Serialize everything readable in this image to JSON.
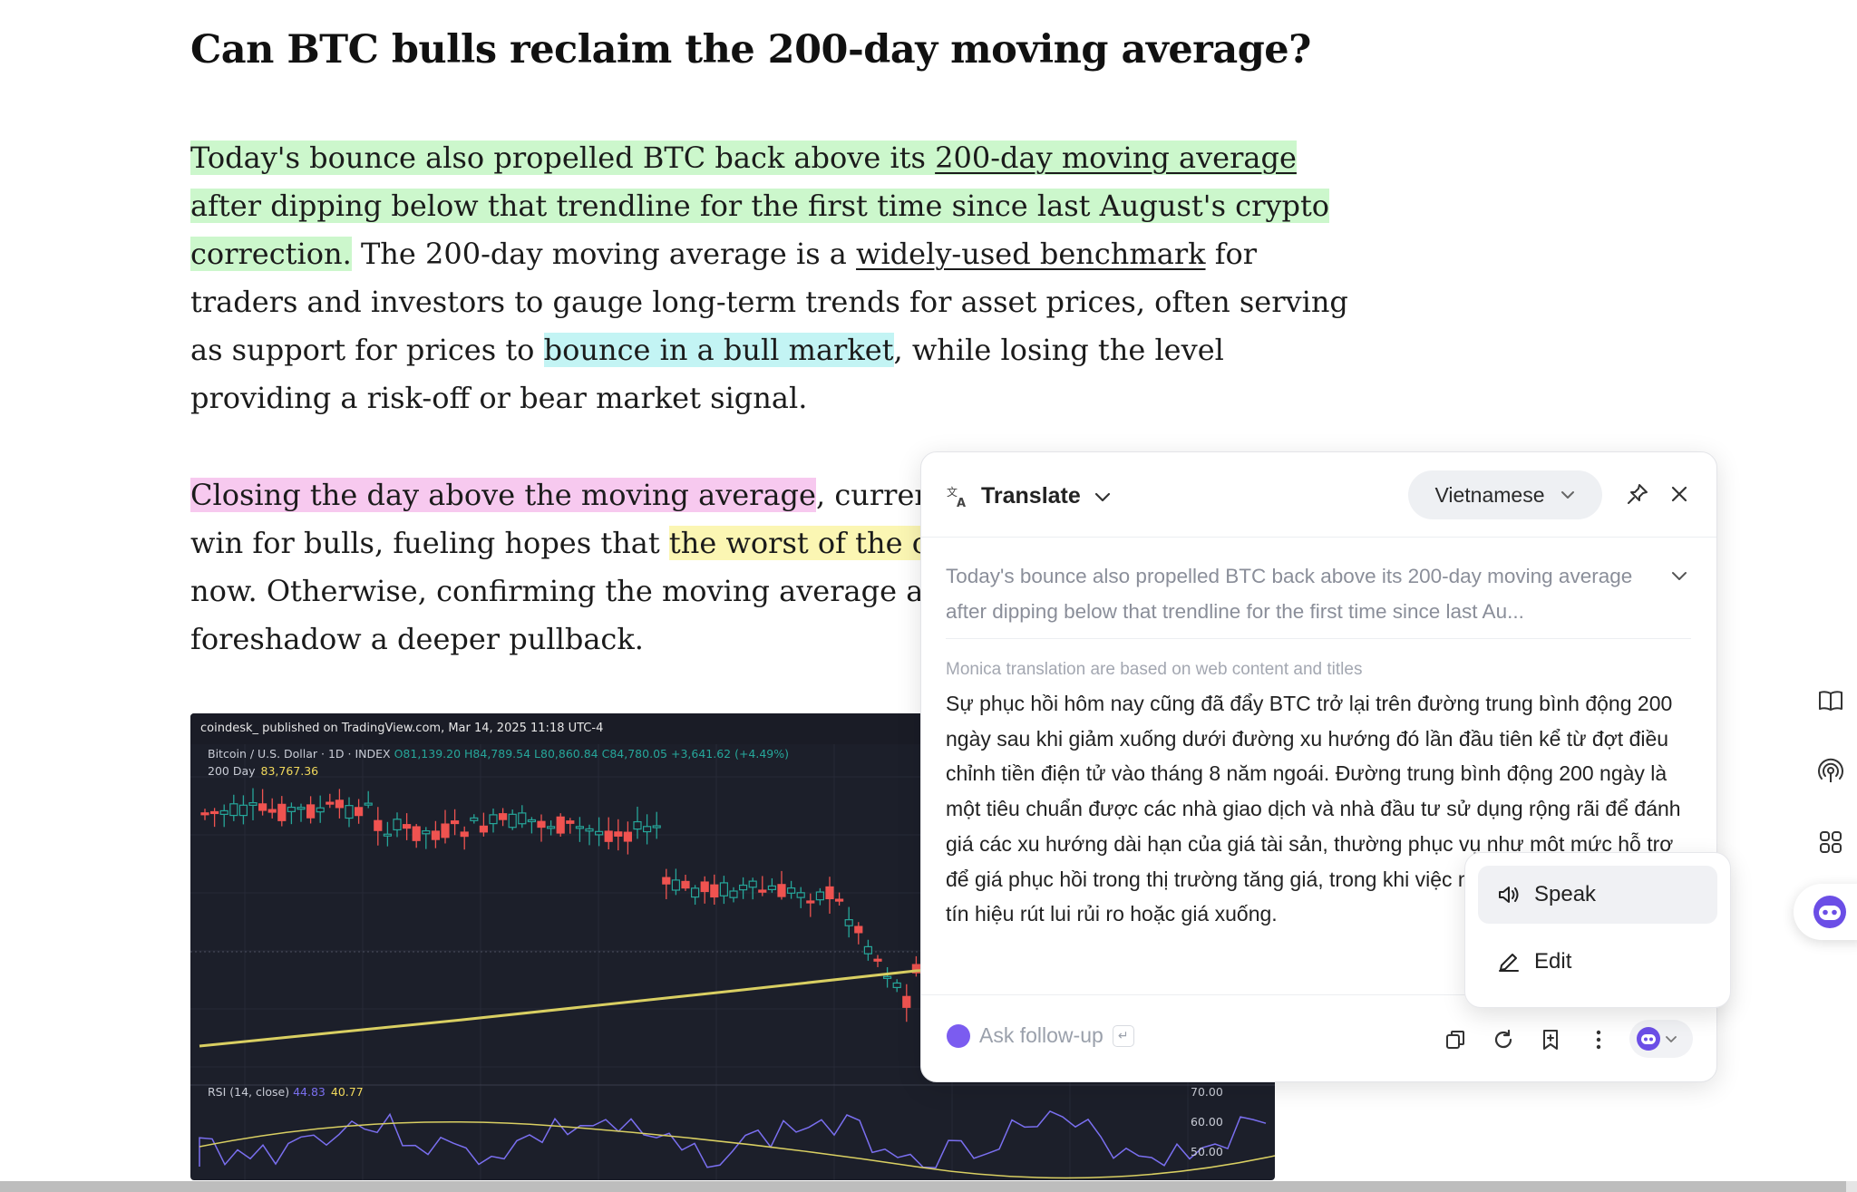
{
  "article": {
    "headline": "Can BTC bulls reclaim the 200-day moving average?",
    "p1": {
      "l1_hl": "Today's bounce also propelled BTC back above its ",
      "l1_link": "200-day moving average",
      "l2_hl": "after dipping below that trendline for the first time since last August's crypto",
      "l3_hl": "correction.",
      "l3_text": " The 200-day moving average is a ",
      "l3_link": "widely-used benchmark",
      "l3_tail": " for",
      "l4": "traders and investors to gauge long-term trends for asset prices, often serving",
      "l5_pre": "as support for prices to ",
      "l5_hl": "bounce in a bull market",
      "l5_tail": ", while losing the level",
      "l6": "providing a risk-off or bear market signal."
    },
    "p2": {
      "l1_hl": "Closing the day above the moving average",
      "l1_tail": ", currently",
      "l2_pre": "win for bulls, fueling hopes that ",
      "l2_hl": "the worst of the corre",
      "l3": "now. Otherwise, confirming the moving average as re",
      "l4": "foreshadow a deeper pullback."
    }
  },
  "chart": {
    "source": "coindesk_ published on TradingView.com, Mar 14, 2025 11:18 UTC-4",
    "symbol": "Bitcoin / U.S. Dollar · 1D · INDEX",
    "o": "O81,139.20",
    "h": "H84,789.54",
    "l": "L80,860.84",
    "c": "C84,780.05",
    "chg": "+3,641.62 (+4.49%)",
    "ma_label": "200 Day",
    "ma_value": "83,767.36",
    "rsi_label": "RSI (14, close)",
    "rsi_v1": "44.83",
    "rsi_v2": "40.77",
    "rsi_ticks": [
      "70.00",
      "60.00",
      "50.00"
    ]
  },
  "translate": {
    "title": "Translate",
    "language": "Vietnamese",
    "source_text": "Today's bounce also propelled BTC back above its 200-day moving average after dipping below that trendline for the first time since last Au...",
    "note": "Monica translation are based on web content and titles",
    "translation": "Sự phục hồi hôm nay cũng đã đẩy BTC trở lại trên đường trung bình động 200 ngày sau khi giảm xuống dưới đường xu hướng đó lần đầu tiên kể từ đợt điều chỉnh tiền điện tử vào tháng 8 năm ngoái. Đường trung bình động 200 ngày là một tiêu chuẩn được các nhà giao dịch và nhà đầu tư sử dụng rộng rãi để đánh giá các xu hướng dài hạn của giá tài sản, thường phục vụ như một mức hỗ trợ để giá phục hồi trong thị trường tăng giá, trong khi việc mất mức này sẽ cung cấp tín hiệu rút lui rủi ro hoặc giá xuống.",
    "follow_placeholder": "Ask follow-up",
    "enter_glyph": "↵"
  },
  "menu": {
    "speak": "Speak",
    "edit": "Edit"
  },
  "colors": {
    "accent": "#7b5cf0",
    "hl_green": "#ccf7cc",
    "hl_cyan": "#c3f4f4",
    "hl_pink": "#f7c9ef",
    "hl_yellow": "#fbf6b3"
  }
}
